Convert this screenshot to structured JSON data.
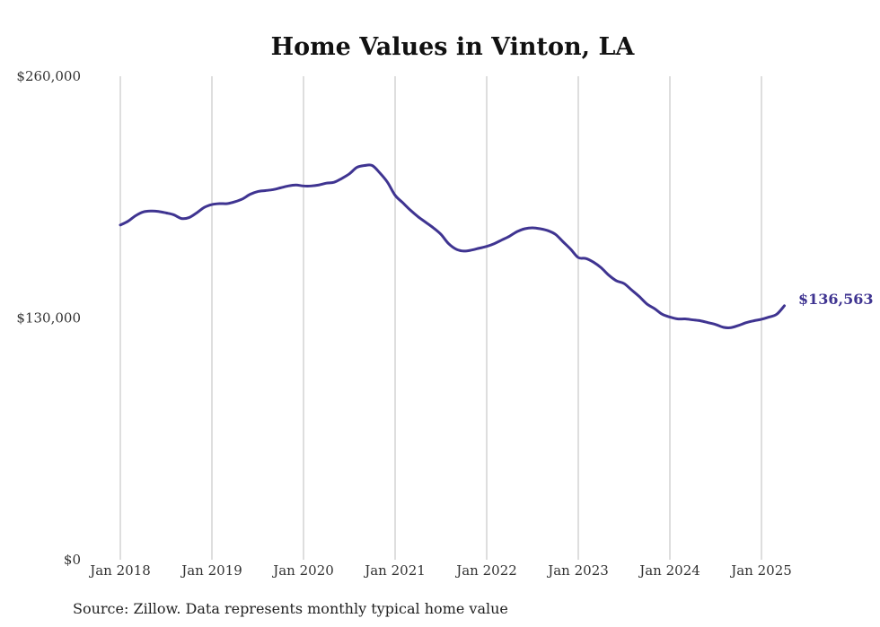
{
  "chart_data": {
    "type": "line",
    "title": "Home Values in Vinton, LA",
    "xlabel": "",
    "ylabel": "",
    "x_ticks": [
      "Jan 2018",
      "Jan 2019",
      "Jan 2020",
      "Jan 2021",
      "Jan 2022",
      "Jan 2023",
      "Jan 2024",
      "Jan 2025"
    ],
    "y_ticks": [
      "$0",
      "$130,000",
      "$260,000"
    ],
    "ylim": [
      0,
      260000
    ],
    "xlim": [
      "2018-01",
      "2025-04"
    ],
    "grid": "vertical",
    "series": [
      {
        "color": "#3f3491",
        "points": [
          [
            "2018-01",
            180000
          ],
          [
            "2018-02",
            182000
          ],
          [
            "2018-03",
            185000
          ],
          [
            "2018-04",
            187000
          ],
          [
            "2018-05",
            187500
          ],
          [
            "2018-06",
            187300
          ],
          [
            "2018-07",
            186500
          ],
          [
            "2018-08",
            185500
          ],
          [
            "2018-09",
            183500
          ],
          [
            "2018-10",
            184000
          ],
          [
            "2018-11",
            186500
          ],
          [
            "2018-12",
            189500
          ],
          [
            "2019-01",
            191000
          ],
          [
            "2019-02",
            191500
          ],
          [
            "2019-03",
            191500
          ],
          [
            "2019-04",
            192500
          ],
          [
            "2019-05",
            194000
          ],
          [
            "2019-06",
            196500
          ],
          [
            "2019-07",
            198000
          ],
          [
            "2019-08",
            198500
          ],
          [
            "2019-09",
            199000
          ],
          [
            "2019-10",
            200000
          ],
          [
            "2019-11",
            201000
          ],
          [
            "2019-12",
            201500
          ],
          [
            "2020-01",
            201000
          ],
          [
            "2020-02",
            201000
          ],
          [
            "2020-03",
            201500
          ],
          [
            "2020-04",
            202500
          ],
          [
            "2020-05",
            203000
          ],
          [
            "2020-06",
            205000
          ],
          [
            "2020-07",
            207500
          ],
          [
            "2020-08",
            211000
          ],
          [
            "2020-09",
            212000
          ],
          [
            "2020-10",
            212000
          ],
          [
            "2020-11",
            208000
          ],
          [
            "2020-12",
            203000
          ],
          [
            "2021-01",
            196000
          ],
          [
            "2021-02",
            192000
          ],
          [
            "2021-03",
            188000
          ],
          [
            "2021-04",
            184500
          ],
          [
            "2021-05",
            181500
          ],
          [
            "2021-06",
            178500
          ],
          [
            "2021-07",
            175000
          ],
          [
            "2021-08",
            170000
          ],
          [
            "2021-09",
            167000
          ],
          [
            "2021-10",
            166000
          ],
          [
            "2021-11",
            166500
          ],
          [
            "2021-12",
            167500
          ],
          [
            "2022-01",
            168500
          ],
          [
            "2022-02",
            170000
          ],
          [
            "2022-03",
            172000
          ],
          [
            "2022-04",
            174000
          ],
          [
            "2022-05",
            176500
          ],
          [
            "2022-06",
            178000
          ],
          [
            "2022-07",
            178500
          ],
          [
            "2022-08",
            178000
          ],
          [
            "2022-09",
            177000
          ],
          [
            "2022-10",
            175000
          ],
          [
            "2022-11",
            171000
          ],
          [
            "2022-12",
            167000
          ],
          [
            "2023-01",
            162500
          ],
          [
            "2023-02",
            162000
          ],
          [
            "2023-03",
            160000
          ],
          [
            "2023-04",
            157000
          ],
          [
            "2023-05",
            153000
          ],
          [
            "2023-06",
            150000
          ],
          [
            "2023-07",
            148500
          ],
          [
            "2023-08",
            145000
          ],
          [
            "2023-09",
            141500
          ],
          [
            "2023-10",
            137500
          ],
          [
            "2023-11",
            135000
          ],
          [
            "2023-12",
            132000
          ],
          [
            "2024-01",
            130500
          ],
          [
            "2024-02",
            129500
          ],
          [
            "2024-03",
            129500
          ],
          [
            "2024-04",
            129000
          ],
          [
            "2024-05",
            128500
          ],
          [
            "2024-06",
            127500
          ],
          [
            "2024-07",
            126500
          ],
          [
            "2024-08",
            125000
          ],
          [
            "2024-09",
            124800
          ],
          [
            "2024-10",
            126000
          ],
          [
            "2024-11",
            127500
          ],
          [
            "2024-12",
            128500
          ],
          [
            "2025-01",
            129300
          ],
          [
            "2025-02",
            130500
          ],
          [
            "2025-03",
            132000
          ],
          [
            "2025-04",
            136563
          ]
        ]
      }
    ],
    "end_label": "$136,563",
    "source": "Source: Zillow. Data represents monthly typical home value"
  }
}
